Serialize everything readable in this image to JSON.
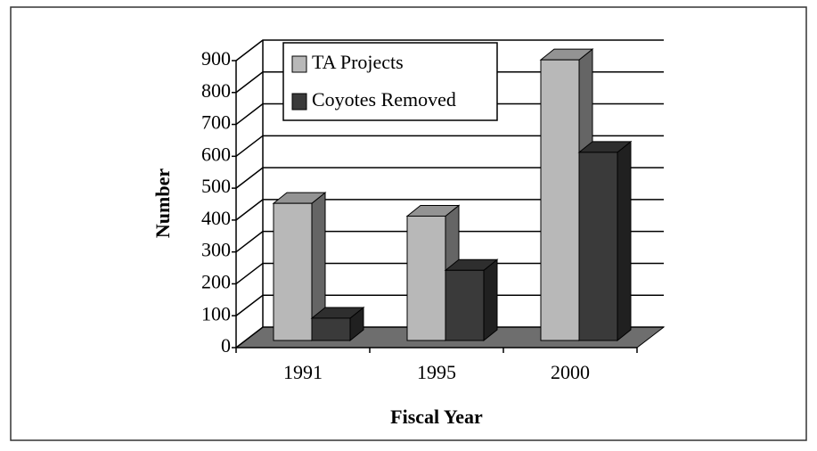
{
  "chart_data": {
    "type": "bar3d",
    "categories": [
      "1991",
      "1995",
      "2000"
    ],
    "series": [
      {
        "name": "TA Projects",
        "color": "#b8b8b8",
        "values": [
          430,
          390,
          880
        ]
      },
      {
        "name": "Coyotes Removed",
        "color": "#3a3a3a",
        "values": [
          70,
          220,
          590
        ]
      }
    ],
    "ylim": [
      0,
      900
    ],
    "yticks": [
      0,
      100,
      200,
      300,
      400,
      500,
      600,
      700,
      800,
      900
    ],
    "y_label": "Number",
    "x_label": "Fiscal Year",
    "grid": true
  }
}
